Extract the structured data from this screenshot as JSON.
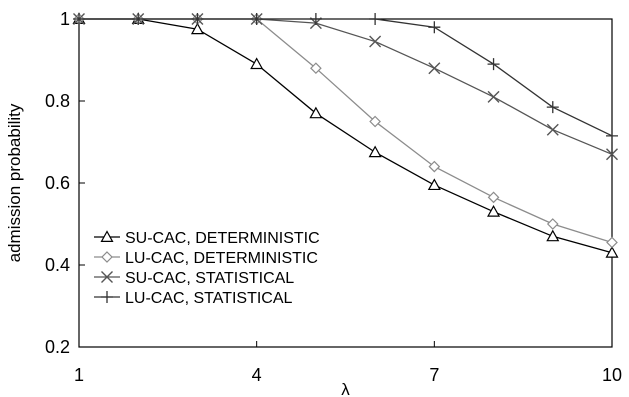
{
  "chart_data": {
    "type": "line",
    "title": "",
    "xlabel": "λ",
    "ylabel": "admission probability",
    "x": [
      1,
      2,
      3,
      4,
      5,
      6,
      7,
      8,
      9,
      10
    ],
    "xlim": [
      1,
      10
    ],
    "ylim": [
      0.2,
      1.0
    ],
    "xticks": [
      1,
      4,
      7,
      10
    ],
    "yticks": [
      0.2,
      0.4,
      0.6,
      0.8,
      1
    ],
    "xtick_labels": [
      "1",
      "4",
      "7",
      "10"
    ],
    "ytick_labels": [
      "0.2",
      "0.4",
      "0.6",
      "0.8",
      "1"
    ],
    "grid": false,
    "legend_position": "bottom-left",
    "series": [
      {
        "name": "SU-CAC, DETERMINISTIC",
        "marker": "triangle",
        "color": "#000000",
        "values": [
          1.0,
          1.0,
          0.975,
          0.89,
          0.77,
          0.675,
          0.595,
          0.53,
          0.47,
          0.43
        ]
      },
      {
        "name": "LU-CAC, DETERMINISTIC",
        "marker": "diamond",
        "color": "#8c8c8c",
        "values": [
          1.0,
          1.0,
          1.0,
          1.0,
          0.88,
          0.75,
          0.64,
          0.565,
          0.5,
          0.455
        ]
      },
      {
        "name": "SU-CAC, STATISTICAL",
        "marker": "x",
        "color": "#555555",
        "values": [
          1.0,
          1.0,
          1.0,
          1.0,
          0.99,
          0.945,
          0.88,
          0.81,
          0.73,
          0.67
        ]
      },
      {
        "name": "LU-CAC, STATISTICAL",
        "marker": "plus",
        "color": "#333333",
        "values": [
          1.0,
          1.0,
          1.0,
          1.0,
          1.0,
          1.0,
          0.98,
          0.89,
          0.785,
          0.715
        ]
      }
    ]
  }
}
